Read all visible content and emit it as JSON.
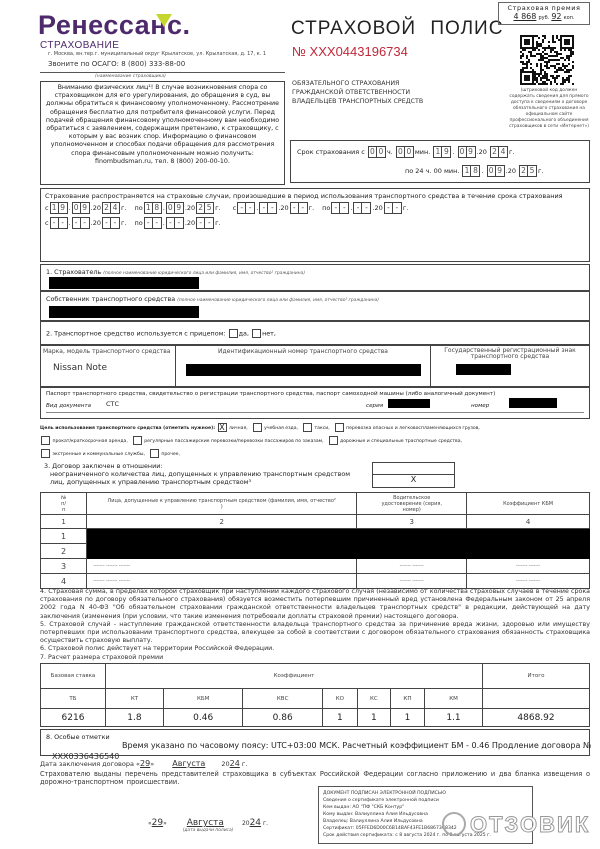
{
  "header": {
    "brand": "Ренессанс.",
    "brand_sub": "СТРАХОВАНИЕ",
    "address": "г. Москва, вн.тер.г. муниципальный округ Крылатское, ул. Крылатская, д. 17, к. 1",
    "phone": "Звоните по ОСАГО: 8 (800) 333-88-00",
    "insurer_caption": "(наименование страховщика)",
    "brand_color": "#4e2a6c",
    "accent_color": "#c6d630"
  },
  "notice": "Вниманию физических лиц¹! В случае возникновения спора со страховщиком для его урегулирования, до обращения в суд, вы должны обратиться к финансовому уполномоченному. Рассмотрение обращения бесплатно для потребителя финансовой услуги. Перед подачей обращения финансовому уполномоченному вам необходимо обратиться с заявлением, содержащим претензию, к страховщику, с которым у вас возник спор. Информацию о финансовом уполномоченном и способах подачи обращения для рассмотрения спора финансовым уполномоченным можно получить: finombudsman.ru, тел. 8 (800) 200-00-10.",
  "policy": {
    "title": "СТРАХОВОЙ ПОЛИС",
    "number": "№ XXX0443196734",
    "number_color": "#c0283a",
    "subtitle": [
      "ОБЯЗАТЕЛЬНОГО СТРАХОВАНИЯ",
      "ГРАЖДАНСКОЙ ОТВЕТСТВЕННОСТИ",
      "ВЛАДЕЛЬЦЕВ ТРАНСПОРТНЫХ СРЕДСТВ"
    ]
  },
  "premium": {
    "label": "Страховая премия",
    "rub": "4 868",
    "rub_unit": "руб.",
    "kop": "92",
    "kop_unit": "коп."
  },
  "qr_caption": "(штриховой код должен содержать сведения для прямого доступа к сведениям о договоре обязательного страхования на официальном сайте профессионального объединения страховщиков в сети «Интернет»)",
  "period": {
    "label": "Срок страхования с",
    "from_h": "00",
    "h_unit": "ч.",
    "from_m": "00",
    "m_unit": "мин.",
    "from_d": "19",
    "from_mo": "09",
    "yr_prefix": "20",
    "from_y": "24",
    "g": "г.",
    "to_label": "по 24 ч. 00 мин.",
    "to_d": "18",
    "to_mo": "09",
    "to_y": "25"
  },
  "coverage": {
    "text": "Страхование распространяется на страховые случаи, произошедшие в период использования транспортного средства в течение срока страхования",
    "s": "с",
    "po": "по",
    "yr_prefix": "20",
    "g": "г.",
    "periods": [
      {
        "from": [
          "19",
          "09",
          "24"
        ],
        "to": [
          "18",
          "09",
          "25"
        ]
      },
      {
        "from": [
          "--",
          "--",
          "--"
        ],
        "to": [
          "--",
          "--",
          "--"
        ]
      },
      {
        "from": [
          "--",
          "--",
          "--"
        ],
        "to": [
          "--",
          "--",
          "--"
        ]
      }
    ]
  },
  "insurant": {
    "label": "1. Страхователь",
    "hint": "(полное наименование юридического лица или фамилия, имя, отчество² гражданина)"
  },
  "owner": {
    "label": "Собственник транспортного средства",
    "hint": "(полное наименование юридического лица или фамилия, имя, отчество² гражданина)"
  },
  "trailer": {
    "label": "2. Транспортное средство используется с прицепом:",
    "yes": "да,",
    "no": "нет,",
    "yes_checked": false,
    "no_checked": false
  },
  "vehicle": {
    "model_label": "Марка, модель транспортного средства",
    "model": "Nissan Note",
    "vin_label": "Идентификационный номер транспортного средства",
    "plate_label": "Государственный регистрационный знак транспортного средства"
  },
  "passport": {
    "label": "Паспорт транспортного средства, свидетельство о регистрации транспортного средства, паспорт самоходной машины (либо аналогичный документ)",
    "doc_type_label": "Вид документа",
    "doc_type": "СТС",
    "series_label": "серия",
    "number_label": "номер"
  },
  "purpose": {
    "label": "Цель использования транспортного средства (отметить нужное):",
    "items": [
      {
        "label": "личная,",
        "checked": true
      },
      {
        "label": "учебная езда,",
        "checked": false
      },
      {
        "label": "такси,",
        "checked": false
      },
      {
        "label": "перевозка опасных и легковоспламеняющихся грузов,",
        "checked": false
      },
      {
        "label": "прокат/краткосрочная аренда,",
        "checked": false
      },
      {
        "label": "регулярные пассажирские перевозки/перевозки пассажиров по заказам,",
        "checked": false
      },
      {
        "label": "дорожные и специальные траспортные средства,",
        "checked": false
      },
      {
        "label": "экстренные и коммунальные службы,",
        "checked": false
      },
      {
        "label": "прочее,",
        "checked": false
      }
    ],
    "check_mark": "X"
  },
  "contract": {
    "label": "3. Договор заключен в отношении:",
    "unlimited": "неограниченного количества лиц, допущенных к управлению транспортным средством",
    "limited": "лиц, допущенных к управлению транспортным средством³",
    "unlimited_mark": "",
    "limited_mark": "X"
  },
  "drivers": {
    "headers": [
      "№ п/п",
      "Лица, допущенные к управлению транспортным средством (фамилия, имя, отчество² )",
      "Водительское удостоверение (серия, номер)",
      "Коэффициент КБМ"
    ],
    "col_numbers": [
      "1",
      "2",
      "3",
      "4"
    ],
    "rows": [
      {
        "n": "1",
        "redacted": true
      },
      {
        "n": "2",
        "redacted": true
      },
      {
        "n": "3",
        "name": "------- ------- -------",
        "license": "------- -------",
        "kbm": "------- -------"
      },
      {
        "n": "4",
        "name": "------- ------- -------",
        "license": "------- -------",
        "kbm": "------- -------"
      }
    ]
  },
  "clauses": [
    "4. Страховая сумма, в пределах которой страховщик при наступлении каждого страхового случая (независимо от количества страховых случаев в течение срока страхования по договору обязательного страхования) обязуется возместить потерпевшим причиненный вред установлена Федеральным законом от 25 апреля 2002 года N 40-ФЗ \"Об обязательном страховании гражданской ответственности владельцев транспортных средств\" в редакции, действующей на дату заключения (изменения (при условии, что такие изменения потребовали доплаты страховой премии) настоящего договора.",
    "5. Страховой случай - наступление гражданской ответственности владельца транспортного средства за причинение вреда жизни, здоровью или имуществу потерпевших при использовании транспортного средства, влекущее за собой в соответствии с договором обязательного страхования обязанность страховщика осуществить страховую выплату.",
    "6. Страховой полис действует на территории Российской Федерации.",
    "7. Расчет размера страховой премии"
  ],
  "premium_calc": {
    "base_label": "Базовая ставка",
    "coef_label": "Коэффициент",
    "total_label": "Итого",
    "columns": [
      "ТБ",
      "КТ",
      "КБМ",
      "КВС",
      "КО",
      "КС",
      "КП",
      "КМ",
      ""
    ],
    "values": [
      "6216",
      "1.8",
      "0.46",
      "0.86",
      "1",
      "1",
      "1",
      "1.1",
      "4868.92"
    ]
  },
  "special": {
    "label": "8. Особые отметки",
    "text": "Время указано по часовому поясу: UTC+03:00 МСК. Расчетный коэффициент БМ - 0.46 Продление договора №",
    "overflow": "XXX0336436540"
  },
  "contract_date": {
    "label": "Дата заключения договора",
    "day": "29",
    "month": "Августа",
    "yr_prefix": "20",
    "year": "24",
    "g": "г."
  },
  "issued_text": "Страхователю выданы перечень представителей страховщика в субъектах Российской Федерации согласно приложению и два бланка извещения о дорожно-транспортном происшествии.",
  "issue_date": {
    "day": "29",
    "month": "Августа",
    "yr_prefix": "20",
    "year": "24",
    "g": "г.",
    "caption": "(дата выдачи полиса)"
  },
  "signature": {
    "lines": [
      "ДОКУМЕНТ ПОДПИСАН ЭЛЕКТРОННОЙ ПОДПИСЬЮ",
      "Сведения о сертификате электронной подписи",
      "Кем выдан: АО \"ПФ \"СКБ Контур\"",
      "Кому выдан: Валиуллина Алия Ильдусовна",
      "Владелец: Валиуллина Алия Ильдусовна",
      "Сертификат: 05FFED6D00C6B14BAF43FE1B68673C8342",
      "Срок действия сертификата: с 8 августа 2024 г. по 8 августа 2025 г."
    ]
  },
  "watermark": "ОТЗОВИК"
}
